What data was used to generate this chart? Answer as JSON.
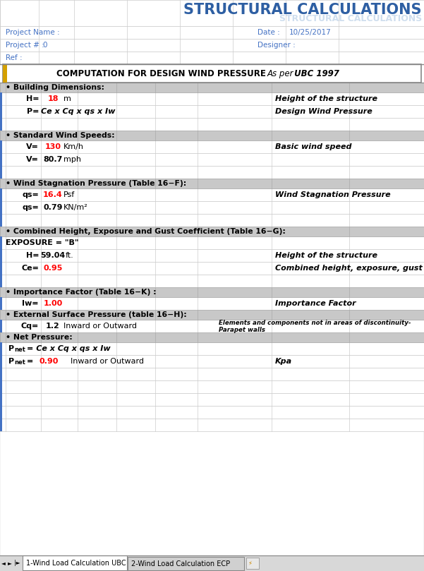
{
  "title": "STRUCTURAL CALCULATIONS",
  "title_color": "#2E5FA3",
  "bg_color": "#FFFFFF",
  "label_color": "#4472C4",
  "red_color": "#FF0000",
  "project_name_label": "Project Name :",
  "project_num_label": "Project # :",
  "project_num_val": "0",
  "ref_label": "Ref :",
  "date_label": "Date :",
  "date_val": "10/25/2017",
  "designer_label": "Designer :",
  "tab1": "1-Wind Load Calculation UBC",
  "tab2": "2-Wind Load Calculation ECP"
}
